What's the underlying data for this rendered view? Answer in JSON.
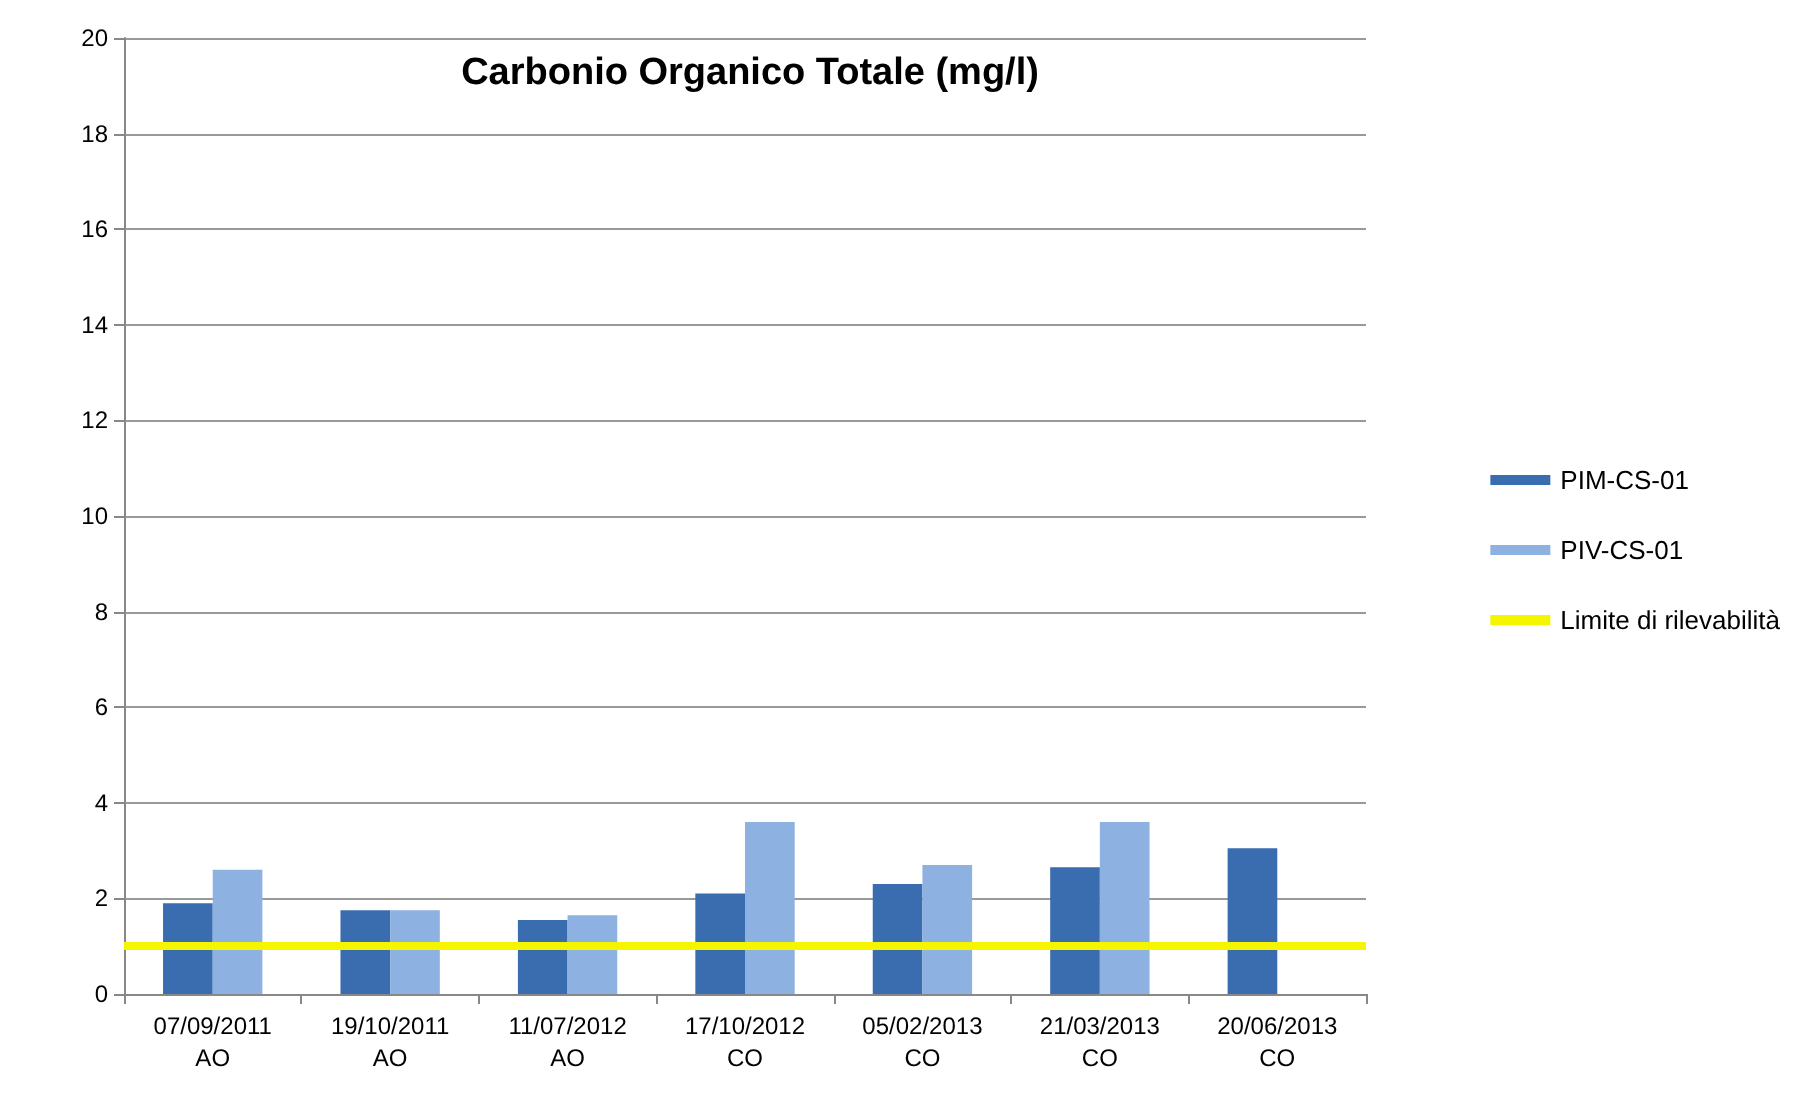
{
  "chart_data": {
    "type": "bar",
    "title": "Carbonio Organico Totale (mg/l)",
    "categories": [
      "07/09/2011\nAO",
      "19/10/2011\nAO",
      "11/07/2012\nAO",
      "17/10/2012\nCO",
      "05/02/2013\nCO",
      "21/03/2013\nCO",
      "20/06/2013\nCO"
    ],
    "series": [
      {
        "name": "PIM-CS-01",
        "color": "#3a6db0",
        "values": [
          1.9,
          1.75,
          1.55,
          2.1,
          2.3,
          2.65,
          3.05
        ]
      },
      {
        "name": "PIV-CS-01",
        "color": "#8db1e0",
        "values": [
          2.6,
          1.75,
          1.65,
          3.6,
          2.7,
          3.6,
          null
        ]
      }
    ],
    "ref_lines": [
      {
        "axis": "y",
        "value": 1,
        "label": "Limite di rilevabilità",
        "color": "#f5f500"
      }
    ],
    "ylim": [
      0,
      20
    ],
    "yticks": [
      0,
      2,
      4,
      6,
      8,
      10,
      12,
      14,
      16,
      18,
      20
    ],
    "grid": "y",
    "legend": "right"
  }
}
